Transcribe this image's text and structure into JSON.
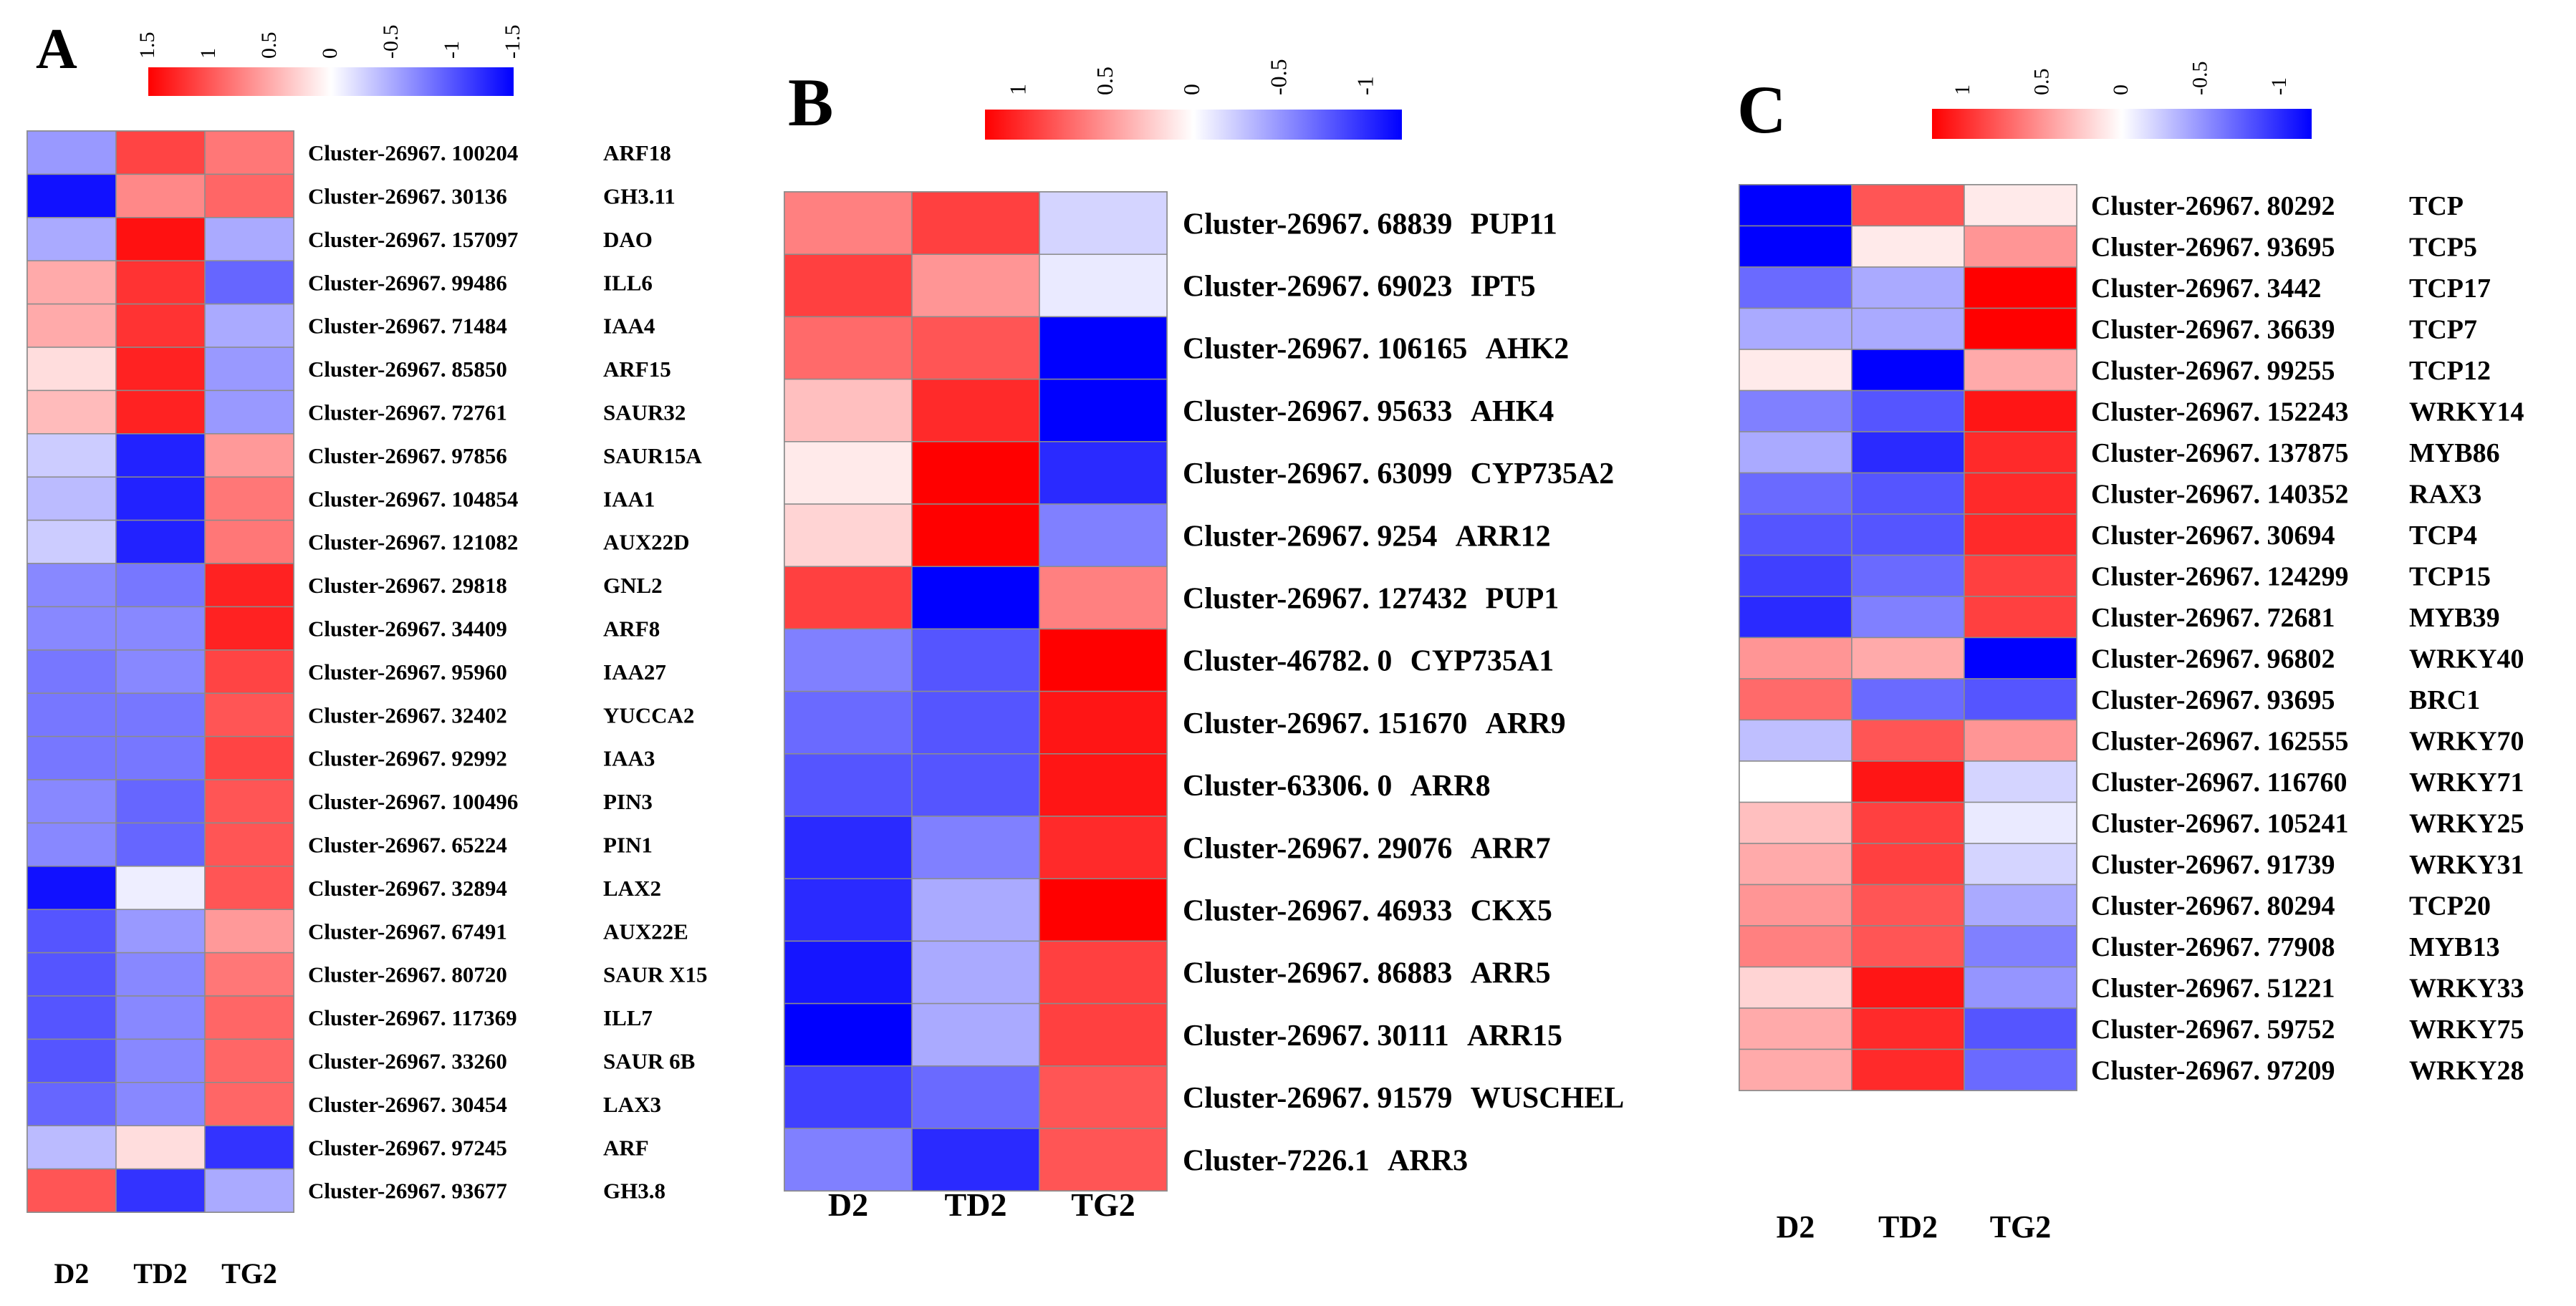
{
  "chart_data": [
    {
      "type": "heatmap",
      "panel_label": "A",
      "legend": {
        "ticks": [
          "1.5",
          "1",
          "0.5",
          "0",
          "-0.5",
          "-1",
          "-1.5"
        ],
        "range": [
          1.5,
          -1.5
        ]
      },
      "columns": [
        "D2",
        "TD2",
        "TG2"
      ],
      "rows": [
        {
          "id": "Cluster-26967. 100204",
          "gene": "ARF18",
          "values": [
            -0.6,
            1.1,
            0.8
          ]
        },
        {
          "id": "Cluster-26967. 30136",
          "gene": "GH3.11",
          "values": [
            -1.4,
            0.7,
            0.9
          ]
        },
        {
          "id": "Cluster-26967. 157097",
          "gene": "DAO",
          "values": [
            -0.5,
            1.4,
            -0.5
          ]
        },
        {
          "id": "Cluster-26967. 99486",
          "gene": "ILL6",
          "values": [
            0.5,
            1.2,
            -0.9
          ]
        },
        {
          "id": "Cluster-26967. 71484",
          "gene": "IAA4",
          "values": [
            0.5,
            1.2,
            -0.5
          ]
        },
        {
          "id": "Cluster-26967. 85850",
          "gene": "ARF15",
          "values": [
            0.2,
            1.3,
            -0.6
          ]
        },
        {
          "id": "Cluster-26967. 72761",
          "gene": "SAUR32",
          "values": [
            0.4,
            1.3,
            -0.6
          ]
        },
        {
          "id": "Cluster-26967. 97856",
          "gene": "SAUR15A",
          "values": [
            -0.3,
            -1.3,
            0.6
          ]
        },
        {
          "id": "Cluster-26967. 104854",
          "gene": "IAA1",
          "values": [
            -0.4,
            -1.3,
            0.8
          ]
        },
        {
          "id": "Cluster-26967. 121082",
          "gene": "AUX22D",
          "values": [
            -0.3,
            -1.3,
            0.8
          ]
        },
        {
          "id": "Cluster-26967. 29818",
          "gene": "GNL2",
          "values": [
            -0.7,
            -0.8,
            1.3
          ]
        },
        {
          "id": "Cluster-26967. 34409",
          "gene": "ARF8",
          "values": [
            -0.7,
            -0.7,
            1.3
          ]
        },
        {
          "id": "Cluster-26967. 95960",
          "gene": "IAA27",
          "values": [
            -0.8,
            -0.7,
            1.1
          ]
        },
        {
          "id": "Cluster-26967. 32402",
          "gene": "YUCCA2",
          "values": [
            -0.8,
            -0.8,
            1.0
          ]
        },
        {
          "id": "Cluster-26967. 92992",
          "gene": "IAA3",
          "values": [
            -0.8,
            -0.8,
            1.1
          ]
        },
        {
          "id": "Cluster-26967. 100496",
          "gene": "PIN3",
          "values": [
            -0.7,
            -0.9,
            1.0
          ]
        },
        {
          "id": "Cluster-26967. 65224",
          "gene": "PIN1",
          "values": [
            -0.7,
            -0.9,
            1.0
          ]
        },
        {
          "id": "Cluster-26967. 32894",
          "gene": "LAX2",
          "values": [
            -1.4,
            -0.1,
            1.0
          ]
        },
        {
          "id": "Cluster-26967. 67491",
          "gene": "AUX22E",
          "values": [
            -1.0,
            -0.6,
            0.6
          ]
        },
        {
          "id": "Cluster-26967. 80720",
          "gene": "SAUR X15",
          "values": [
            -1.0,
            -0.7,
            0.8
          ]
        },
        {
          "id": "Cluster-26967. 117369",
          "gene": "ILL7",
          "values": [
            -1.0,
            -0.7,
            0.9
          ]
        },
        {
          "id": "Cluster-26967. 33260",
          "gene": "SAUR 6B",
          "values": [
            -1.0,
            -0.7,
            0.9
          ]
        },
        {
          "id": "Cluster-26967. 30454",
          "gene": "LAX3",
          "values": [
            -0.9,
            -0.7,
            0.9
          ]
        },
        {
          "id": "Cluster-26967. 97245",
          "gene": "ARF",
          "values": [
            -0.4,
            0.2,
            -1.2
          ]
        },
        {
          "id": "Cluster-26967. 93677",
          "gene": "GH3.8",
          "values": [
            1.0,
            -1.2,
            -0.5
          ]
        }
      ]
    },
    {
      "type": "heatmap",
      "panel_label": "B",
      "legend": {
        "ticks": [
          "1",
          "0.5",
          "0",
          "-0.5",
          "-1"
        ],
        "range": [
          1.2,
          -1.2
        ]
      },
      "columns": [
        "D2",
        "TD2",
        "TG2"
      ],
      "rows": [
        {
          "id": "Cluster-26967. 68839",
          "gene": "PUP11",
          "values": [
            0.6,
            0.9,
            -0.2
          ]
        },
        {
          "id": "Cluster-26967. 69023",
          "gene": "IPT5",
          "values": [
            0.9,
            0.5,
            -0.1
          ]
        },
        {
          "id": "Cluster-26967. 106165",
          "gene": "AHK2",
          "values": [
            0.7,
            0.8,
            -1.2
          ]
        },
        {
          "id": "Cluster-26967. 95633",
          "gene": "AHK4",
          "values": [
            0.3,
            1.0,
            -1.2
          ]
        },
        {
          "id": "Cluster-26967. 63099",
          "gene": "CYP735A2",
          "values": [
            0.1,
            1.2,
            -1.0
          ]
        },
        {
          "id": "Cluster-26967. 9254",
          "gene": "ARR12",
          "values": [
            0.2,
            1.2,
            -0.6
          ]
        },
        {
          "id": "Cluster-26967. 127432",
          "gene": "PUP1",
          "values": [
            0.9,
            -1.2,
            0.6
          ]
        },
        {
          "id": "Cluster-46782. 0",
          "gene": "CYP735A1",
          "values": [
            -0.6,
            -0.8,
            1.2
          ]
        },
        {
          "id": "Cluster-26967. 151670",
          "gene": "ARR9",
          "values": [
            -0.7,
            -0.8,
            1.1
          ]
        },
        {
          "id": "Cluster-63306. 0",
          "gene": "ARR8",
          "values": [
            -0.8,
            -0.8,
            1.1
          ]
        },
        {
          "id": "Cluster-26967. 29076",
          "gene": "ARR7",
          "values": [
            -1.0,
            -0.6,
            1.0
          ]
        },
        {
          "id": "Cluster-26967. 46933",
          "gene": "CKX5",
          "values": [
            -1.0,
            -0.4,
            1.2
          ]
        },
        {
          "id": "Cluster-26967. 86883",
          "gene": "ARR5",
          "values": [
            -1.1,
            -0.4,
            0.9
          ]
        },
        {
          "id": "Cluster-26967. 30111",
          "gene": "ARR15",
          "values": [
            -1.2,
            -0.4,
            0.9
          ]
        },
        {
          "id": "Cluster-26967. 91579",
          "gene": "WUSCHEL",
          "values": [
            -0.9,
            -0.7,
            0.8
          ]
        },
        {
          "id": "Cluster-7226.1",
          "gene": "ARR3",
          "values": [
            -0.6,
            -1.0,
            0.8
          ]
        }
      ]
    },
    {
      "type": "heatmap",
      "panel_label": "C",
      "legend": {
        "ticks": [
          "1",
          "0.5",
          "0",
          "-0.5",
          "-1"
        ],
        "range": [
          1.2,
          -1.2
        ]
      },
      "columns": [
        "D2",
        "TD2",
        "TG2"
      ],
      "rows": [
        {
          "id": "Cluster-26967. 80292",
          "gene": "TCP",
          "values": [
            -1.2,
            0.8,
            0.1
          ]
        },
        {
          "id": "Cluster-26967. 93695",
          "gene": "TCP5",
          "values": [
            -1.2,
            0.1,
            0.5
          ]
        },
        {
          "id": "Cluster-26967. 3442",
          "gene": "TCP17",
          "values": [
            -0.7,
            -0.4,
            1.2
          ]
        },
        {
          "id": "Cluster-26967. 36639",
          "gene": "TCP7",
          "values": [
            -0.4,
            -0.4,
            1.2
          ]
        },
        {
          "id": "Cluster-26967. 99255",
          "gene": "TCP12",
          "values": [
            0.1,
            -1.2,
            0.4
          ]
        },
        {
          "id": "Cluster-26967. 152243",
          "gene": "WRKY14",
          "values": [
            -0.6,
            -0.8,
            1.1
          ]
        },
        {
          "id": "Cluster-26967. 137875",
          "gene": "MYB86",
          "values": [
            -0.4,
            -1.0,
            1.0
          ]
        },
        {
          "id": "Cluster-26967. 140352",
          "gene": "RAX3",
          "values": [
            -0.7,
            -0.8,
            1.0
          ]
        },
        {
          "id": "Cluster-26967. 30694",
          "gene": "TCP4",
          "values": [
            -0.8,
            -0.8,
            1.0
          ]
        },
        {
          "id": "Cluster-26967. 124299",
          "gene": "TCP15",
          "values": [
            -0.9,
            -0.7,
            0.9
          ]
        },
        {
          "id": "Cluster-26967. 72681",
          "gene": "MYB39",
          "values": [
            -1.0,
            -0.6,
            0.9
          ]
        },
        {
          "id": "Cluster-26967. 96802",
          "gene": "WRKY40",
          "values": [
            0.5,
            0.4,
            -1.2
          ]
        },
        {
          "id": "Cluster-26967. 93695",
          "gene": "BRC1",
          "values": [
            0.7,
            -0.7,
            -0.8
          ]
        },
        {
          "id": "Cluster-26967. 162555",
          "gene": "WRKY70",
          "values": [
            -0.3,
            0.8,
            0.5
          ]
        },
        {
          "id": "Cluster-26967. 116760",
          "gene": "WRKY71",
          "values": [
            0.0,
            1.1,
            -0.2
          ]
        },
        {
          "id": "Cluster-26967. 105241",
          "gene": "WRKY25",
          "values": [
            0.3,
            0.9,
            -0.1
          ]
        },
        {
          "id": "Cluster-26967. 91739",
          "gene": "WRKY31",
          "values": [
            0.4,
            0.9,
            -0.2
          ]
        },
        {
          "id": "Cluster-26967. 80294",
          "gene": "TCP20",
          "values": [
            0.5,
            0.8,
            -0.4
          ]
        },
        {
          "id": "Cluster-26967. 77908",
          "gene": "MYB13",
          "values": [
            0.6,
            0.8,
            -0.6
          ]
        },
        {
          "id": "Cluster-26967. 51221",
          "gene": "WRKY33",
          "values": [
            0.2,
            1.1,
            -0.5
          ]
        },
        {
          "id": "Cluster-26967. 59752",
          "gene": "WRKY75",
          "values": [
            0.4,
            1.0,
            -0.8
          ]
        },
        {
          "id": "Cluster-26967. 97209",
          "gene": "WRKY28",
          "values": [
            0.4,
            1.0,
            -0.7
          ]
        }
      ]
    }
  ]
}
